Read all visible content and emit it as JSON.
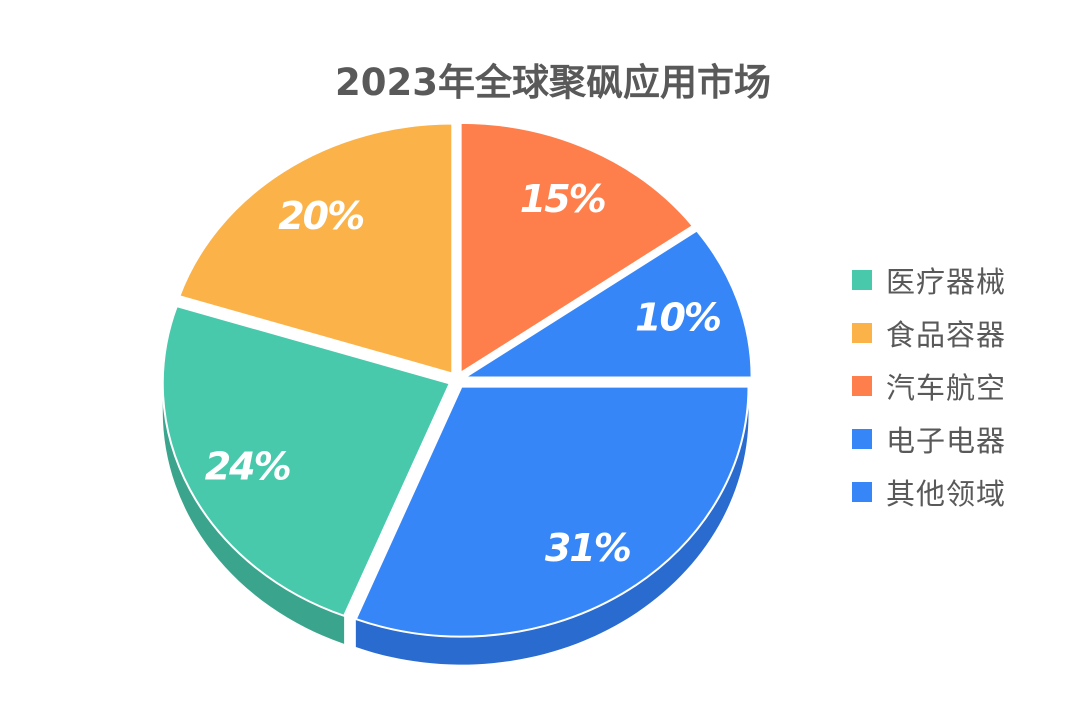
{
  "chart_data": {
    "type": "pie",
    "title": "2023年全球聚砜应用市场",
    "slices": [
      {
        "name": "医疗器械",
        "value": 24,
        "label": "24%",
        "color": "#48C9AC",
        "side": "#3AA58C"
      },
      {
        "name": "食品容器",
        "value": 20,
        "label": "20%",
        "color": "#FBB249",
        "side": "#D9963A"
      },
      {
        "name": "汽车航空",
        "value": 15,
        "label": "15%",
        "color": "#FF7F4C",
        "side": "#D9653A"
      },
      {
        "name": "电子电器",
        "value": 10,
        "label": "10%",
        "color": "#3786F8",
        "side": "#2A6BD0"
      },
      {
        "name": "其他领域",
        "value": 31,
        "label": "31%",
        "color": "#3786F8",
        "side": "#2A6BD0"
      }
    ],
    "legend_position": "right"
  }
}
